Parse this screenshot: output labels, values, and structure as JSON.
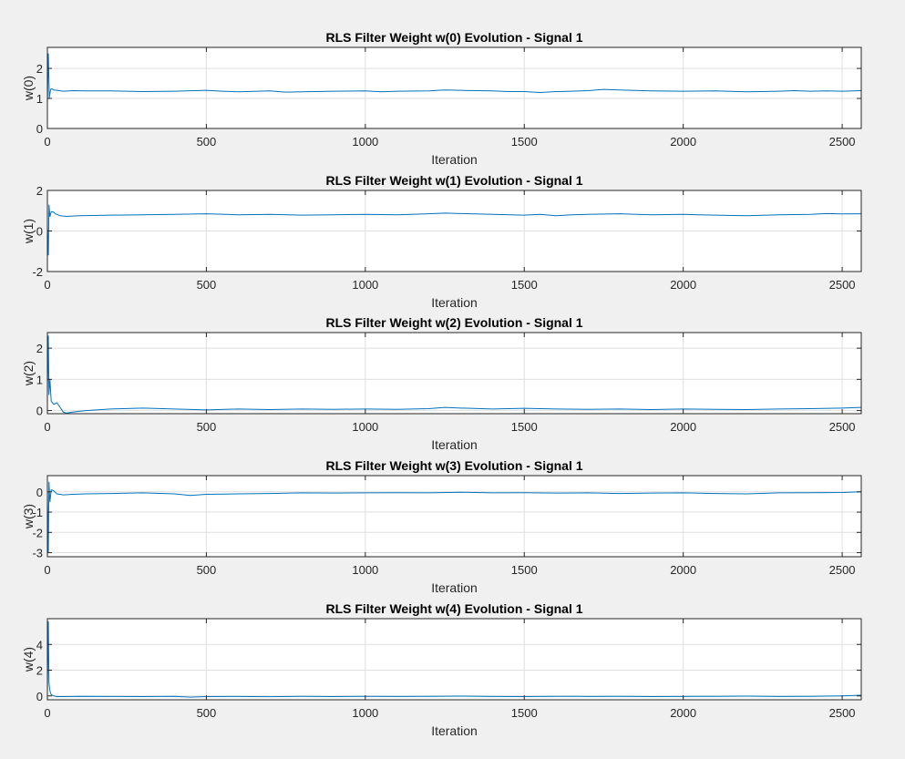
{
  "figure": {
    "background": "#f0f0f0",
    "line_color": "#0072bd"
  },
  "chart_data": [
    {
      "type": "line",
      "title": "RLS Filter Weight w(0) Evolution - Signal 1",
      "xlabel": "Iteration",
      "ylabel": "w(0)",
      "xlim": [
        0,
        2560
      ],
      "ylim": [
        0,
        2.7
      ],
      "xticks": [
        0,
        500,
        1000,
        1500,
        2000,
        2500
      ],
      "yticks": [
        0,
        1,
        2
      ],
      "grid": true,
      "series": [
        {
          "x": [
            0,
            3,
            6,
            10,
            15,
            20,
            30,
            50,
            80,
            120,
            200,
            300,
            400,
            500,
            550,
            600,
            700,
            750,
            800,
            900,
            1000,
            1050,
            1100,
            1200,
            1250,
            1300,
            1400,
            1450,
            1500,
            1550,
            1600,
            1650,
            1700,
            1750,
            1800,
            1900,
            2000,
            2100,
            2200,
            2300,
            2350,
            2400,
            2450,
            2500,
            2560
          ],
          "y": [
            0.8,
            2.5,
            1.0,
            1.3,
            1.32,
            1.28,
            1.27,
            1.24,
            1.26,
            1.25,
            1.25,
            1.23,
            1.24,
            1.27,
            1.24,
            1.22,
            1.25,
            1.21,
            1.22,
            1.24,
            1.25,
            1.22,
            1.24,
            1.25,
            1.28,
            1.27,
            1.25,
            1.23,
            1.23,
            1.2,
            1.23,
            1.24,
            1.26,
            1.3,
            1.28,
            1.25,
            1.24,
            1.25,
            1.22,
            1.24,
            1.26,
            1.24,
            1.25,
            1.24,
            1.26
          ]
        }
      ]
    },
    {
      "type": "line",
      "title": "RLS Filter Weight w(1) Evolution - Signal 1",
      "xlabel": "Iteration",
      "ylabel": "w(1)",
      "xlim": [
        0,
        2560
      ],
      "ylim": [
        -2,
        2
      ],
      "xticks": [
        0,
        500,
        1000,
        1500,
        2000,
        2500
      ],
      "yticks": [
        -2,
        0,
        2
      ],
      "grid": true,
      "series": [
        {
          "x": [
            0,
            3,
            5,
            8,
            12,
            18,
            25,
            40,
            60,
            100,
            200,
            300,
            400,
            500,
            600,
            700,
            800,
            900,
            1000,
            1100,
            1200,
            1250,
            1300,
            1400,
            1500,
            1550,
            1600,
            1650,
            1700,
            1800,
            1900,
            2000,
            2100,
            2200,
            2300,
            2400,
            2450,
            2500,
            2560
          ],
          "y": [
            0.2,
            -1.2,
            1.3,
            0.7,
            0.95,
            0.95,
            0.85,
            0.75,
            0.72,
            0.75,
            0.78,
            0.8,
            0.82,
            0.85,
            0.8,
            0.82,
            0.78,
            0.8,
            0.82,
            0.8,
            0.85,
            0.88,
            0.86,
            0.82,
            0.78,
            0.82,
            0.75,
            0.8,
            0.82,
            0.85,
            0.8,
            0.82,
            0.78,
            0.75,
            0.8,
            0.82,
            0.86,
            0.84,
            0.85
          ]
        }
      ]
    },
    {
      "type": "line",
      "title": "RLS Filter Weight w(2) Evolution - Signal 1",
      "xlabel": "Iteration",
      "ylabel": "w(2)",
      "xlim": [
        0,
        2560
      ],
      "ylim": [
        -0.1,
        2.5
      ],
      "xticks": [
        0,
        500,
        1000,
        1500,
        2000,
        2500
      ],
      "yticks": [
        0,
        1,
        2
      ],
      "grid": true,
      "series": [
        {
          "x": [
            0,
            3,
            5,
            8,
            12,
            20,
            30,
            40,
            50,
            60,
            80,
            120,
            200,
            300,
            400,
            500,
            600,
            700,
            800,
            900,
            1000,
            1100,
            1200,
            1250,
            1300,
            1400,
            1500,
            1600,
            1700,
            1800,
            1900,
            2000,
            2100,
            2200,
            2300,
            2400,
            2500,
            2560
          ],
          "y": [
            0.5,
            2.4,
            0.5,
            1.0,
            0.3,
            0.2,
            0.25,
            0.1,
            -0.05,
            -0.08,
            -0.05,
            0.0,
            0.05,
            0.08,
            0.05,
            0.02,
            0.05,
            0.03,
            0.05,
            0.04,
            0.05,
            0.04,
            0.06,
            0.1,
            0.08,
            0.05,
            0.07,
            0.05,
            0.04,
            0.05,
            0.03,
            0.05,
            0.04,
            0.03,
            0.05,
            0.06,
            0.08,
            0.1
          ]
        }
      ]
    },
    {
      "type": "line",
      "title": "RLS Filter Weight w(3) Evolution - Signal 1",
      "xlabel": "Iteration",
      "ylabel": "w(3)",
      "xlim": [
        0,
        2560
      ],
      "ylim": [
        -3.2,
        0.8
      ],
      "xticks": [
        0,
        500,
        1000,
        1500,
        2000,
        2500
      ],
      "yticks": [
        -3,
        -2,
        -1,
        0
      ],
      "grid": true,
      "series": [
        {
          "x": [
            0,
            3,
            5,
            8,
            12,
            20,
            30,
            50,
            80,
            120,
            200,
            300,
            400,
            450,
            500,
            600,
            700,
            800,
            900,
            1000,
            1100,
            1200,
            1300,
            1400,
            1500,
            1600,
            1700,
            1800,
            1900,
            2000,
            2100,
            2200,
            2300,
            2400,
            2500,
            2560
          ],
          "y": [
            0.0,
            -3.0,
            0.5,
            -0.5,
            0.1,
            0.05,
            -0.1,
            -0.15,
            -0.12,
            -0.1,
            -0.08,
            -0.05,
            -0.1,
            -0.18,
            -0.12,
            -0.1,
            -0.08,
            -0.05,
            -0.06,
            -0.05,
            -0.04,
            -0.05,
            -0.02,
            -0.05,
            -0.04,
            -0.06,
            -0.05,
            -0.08,
            -0.06,
            -0.05,
            -0.08,
            -0.1,
            -0.05,
            -0.04,
            -0.03,
            0.0
          ]
        }
      ]
    },
    {
      "type": "line",
      "title": "RLS Filter Weight w(4) Evolution - Signal 1",
      "xlabel": "Iteration",
      "ylabel": "w(4)",
      "xlim": [
        0,
        2560
      ],
      "ylim": [
        -0.3,
        6
      ],
      "xticks": [
        0,
        500,
        1000,
        1500,
        2000,
        2500
      ],
      "yticks": [
        0,
        2,
        4
      ],
      "grid": true,
      "series": [
        {
          "x": [
            0,
            3,
            5,
            8,
            12,
            20,
            30,
            60,
            100,
            200,
            300,
            400,
            450,
            500,
            600,
            700,
            800,
            900,
            1000,
            1100,
            1200,
            1300,
            1400,
            1500,
            1600,
            1700,
            1800,
            1900,
            2000,
            2100,
            2200,
            2300,
            2400,
            2500,
            2560
          ],
          "y": [
            0.2,
            5.8,
            1.0,
            0.4,
            0.1,
            0.0,
            -0.05,
            -0.05,
            -0.03,
            -0.04,
            -0.05,
            -0.03,
            -0.1,
            -0.05,
            -0.04,
            -0.06,
            -0.03,
            -0.05,
            -0.03,
            -0.04,
            -0.03,
            -0.02,
            -0.04,
            -0.05,
            -0.03,
            -0.04,
            -0.03,
            -0.05,
            -0.04,
            -0.03,
            -0.02,
            -0.04,
            -0.03,
            0.0,
            0.05
          ]
        }
      ]
    }
  ]
}
